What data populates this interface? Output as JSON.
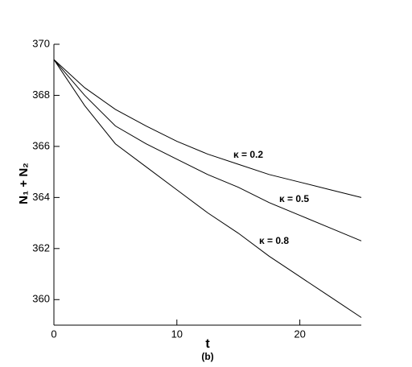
{
  "chart_data": {
    "type": "line",
    "xlabel": "t",
    "ylabel": "N₁ + N₂",
    "caption": "(b)",
    "x": [
      0,
      2.5,
      5,
      7.5,
      10,
      12.5,
      15,
      17.5,
      20,
      22.5,
      25
    ],
    "series": [
      {
        "name": "κ = 0.2",
        "color": "#000000",
        "values": [
          369.4,
          368.3,
          367.45,
          366.8,
          366.2,
          365.7,
          365.3,
          364.9,
          364.6,
          364.3,
          364.0
        ]
      },
      {
        "name": "κ = 0.5",
        "color": "#000000",
        "values": [
          369.4,
          368.0,
          366.8,
          366.1,
          365.5,
          364.9,
          364.4,
          363.8,
          363.3,
          362.8,
          362.3
        ]
      },
      {
        "name": "κ = 0.8",
        "color": "#000000",
        "values": [
          369.4,
          367.6,
          366.1,
          365.2,
          364.3,
          363.4,
          362.6,
          361.7,
          360.9,
          360.1,
          359.3
        ]
      }
    ],
    "xlim": [
      0,
      25
    ],
    "xticks": [
      0,
      10,
      20
    ],
    "ylim": [
      359,
      370
    ],
    "yticks": [
      360,
      362,
      364,
      366,
      368,
      370
    ],
    "grid": false
  }
}
